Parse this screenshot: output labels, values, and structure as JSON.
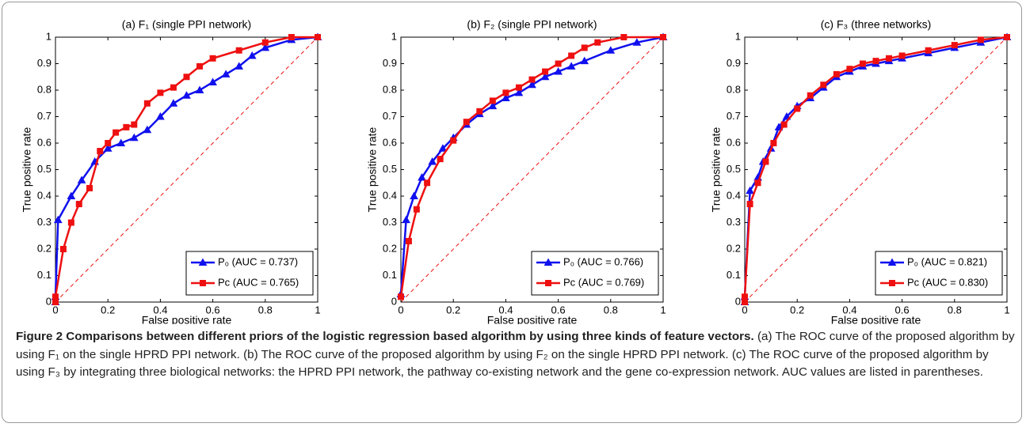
{
  "chart_data": [
    {
      "type": "line",
      "title": "(a) F₁ (single PPI network)",
      "xlabel": "False positive rate",
      "ylabel": "True positive rate",
      "xlim": [
        0,
        1
      ],
      "ylim": [
        0,
        1
      ],
      "xticks": [
        0,
        0.2,
        0.4,
        0.6,
        0.8,
        1
      ],
      "yticks": [
        0,
        0.1,
        0.2,
        0.3,
        0.4,
        0.5,
        0.6,
        0.7,
        0.8,
        0.9,
        1
      ],
      "legend": "lower right",
      "series": [
        {
          "name": "P₀ (AUC = 0.737)",
          "color": "#1010ee",
          "marker": "triangle",
          "x": [
            0,
            0,
            0.01,
            0.06,
            0.1,
            0.15,
            0.2,
            0.25,
            0.3,
            0.35,
            0.4,
            0.45,
            0.5,
            0.55,
            0.6,
            0.65,
            0.7,
            0.75,
            0.8,
            0.9,
            1
          ],
          "values": [
            0,
            0.02,
            0.31,
            0.4,
            0.46,
            0.53,
            0.58,
            0.6,
            0.62,
            0.65,
            0.7,
            0.75,
            0.78,
            0.8,
            0.83,
            0.86,
            0.89,
            0.93,
            0.96,
            0.99,
            1
          ]
        },
        {
          "name": "Pc (AUC = 0.765)",
          "color": "#ee1010",
          "marker": "square",
          "x": [
            0,
            0,
            0.03,
            0.06,
            0.09,
            0.13,
            0.17,
            0.2,
            0.23,
            0.27,
            0.3,
            0.35,
            0.4,
            0.45,
            0.5,
            0.55,
            0.6,
            0.7,
            0.8,
            0.9,
            1
          ],
          "values": [
            0,
            0.02,
            0.2,
            0.3,
            0.37,
            0.43,
            0.57,
            0.6,
            0.64,
            0.66,
            0.67,
            0.75,
            0.79,
            0.81,
            0.85,
            0.89,
            0.92,
            0.95,
            0.98,
            1,
            1
          ]
        }
      ]
    },
    {
      "type": "line",
      "title": "(b) F₂ (single PPI network)",
      "xlabel": "False positive rate",
      "ylabel": "True positive rate",
      "xlim": [
        0,
        1
      ],
      "ylim": [
        0,
        1
      ],
      "xticks": [
        0,
        0.2,
        0.4,
        0.6,
        0.8,
        1
      ],
      "yticks": [
        0,
        0.1,
        0.2,
        0.3,
        0.4,
        0.5,
        0.6,
        0.7,
        0.8,
        0.9,
        1
      ],
      "legend": "lower right",
      "series": [
        {
          "name": "P₀ (AUC = 0.766)",
          "color": "#1010ee",
          "marker": "triangle",
          "x": [
            0,
            0.02,
            0.05,
            0.08,
            0.12,
            0.16,
            0.2,
            0.25,
            0.3,
            0.35,
            0.4,
            0.45,
            0.5,
            0.55,
            0.6,
            0.65,
            0.7,
            0.8,
            0.9,
            1
          ],
          "values": [
            0.03,
            0.31,
            0.4,
            0.47,
            0.53,
            0.58,
            0.62,
            0.67,
            0.71,
            0.74,
            0.77,
            0.79,
            0.82,
            0.85,
            0.87,
            0.89,
            0.91,
            0.95,
            0.98,
            1
          ]
        },
        {
          "name": "Pc (AUC = 0.769)",
          "color": "#ee1010",
          "marker": "square",
          "x": [
            0,
            0.03,
            0.06,
            0.1,
            0.15,
            0.2,
            0.25,
            0.3,
            0.35,
            0.4,
            0.45,
            0.5,
            0.55,
            0.6,
            0.65,
            0.7,
            0.75,
            0.85,
            1
          ],
          "values": [
            0.02,
            0.23,
            0.35,
            0.45,
            0.54,
            0.61,
            0.68,
            0.72,
            0.76,
            0.79,
            0.81,
            0.84,
            0.87,
            0.9,
            0.93,
            0.96,
            0.98,
            1,
            1
          ]
        }
      ]
    },
    {
      "type": "line",
      "title": "(c) F₃ (three networks)",
      "xlabel": "False positive rate",
      "ylabel": "True positive rate",
      "xlim": [
        0,
        1
      ],
      "ylim": [
        0,
        1
      ],
      "xticks": [
        0,
        0.2,
        0.4,
        0.6,
        0.8,
        1
      ],
      "yticks": [
        0,
        0.1,
        0.2,
        0.3,
        0.4,
        0.5,
        0.6,
        0.7,
        0.8,
        0.9,
        1
      ],
      "legend": "lower right",
      "series": [
        {
          "name": "P₀ (AUC = 0.821)",
          "color": "#1010ee",
          "marker": "triangle",
          "x": [
            0,
            0,
            0.02,
            0.05,
            0.07,
            0.1,
            0.13,
            0.16,
            0.2,
            0.25,
            0.3,
            0.35,
            0.4,
            0.45,
            0.5,
            0.55,
            0.6,
            0.7,
            0.8,
            0.9,
            1
          ],
          "values": [
            0,
            0.02,
            0.42,
            0.47,
            0.53,
            0.58,
            0.66,
            0.7,
            0.74,
            0.77,
            0.81,
            0.85,
            0.87,
            0.89,
            0.9,
            0.91,
            0.92,
            0.94,
            0.96,
            0.98,
            1
          ]
        },
        {
          "name": "Pc (AUC = 0.830)",
          "color": "#ee1010",
          "marker": "square",
          "x": [
            0,
            0,
            0.02,
            0.05,
            0.08,
            0.11,
            0.15,
            0.2,
            0.25,
            0.3,
            0.35,
            0.4,
            0.45,
            0.5,
            0.55,
            0.6,
            0.7,
            0.8,
            0.9,
            1
          ],
          "values": [
            0,
            0.02,
            0.37,
            0.45,
            0.53,
            0.6,
            0.67,
            0.73,
            0.78,
            0.82,
            0.86,
            0.88,
            0.9,
            0.91,
            0.92,
            0.93,
            0.95,
            0.97,
            0.99,
            1
          ]
        }
      ]
    }
  ],
  "caption": {
    "title": "Figure 2 Comparisons between different priors of the logistic regression based algorithm by using three kinds of feature vectors.",
    "text": "(a) The ROC curve of the proposed algorithm by using F₁ on the single HPRD PPI network. (b) The ROC curve of the proposed algorithm by using F₂ on the single HPRD PPI network. (c) The ROC curve of the proposed algorithm by using F₃ by integrating three biological networks: the HPRD PPI network, the pathway co-existing network and the gene co-expression network. AUC values are listed in parentheses."
  }
}
